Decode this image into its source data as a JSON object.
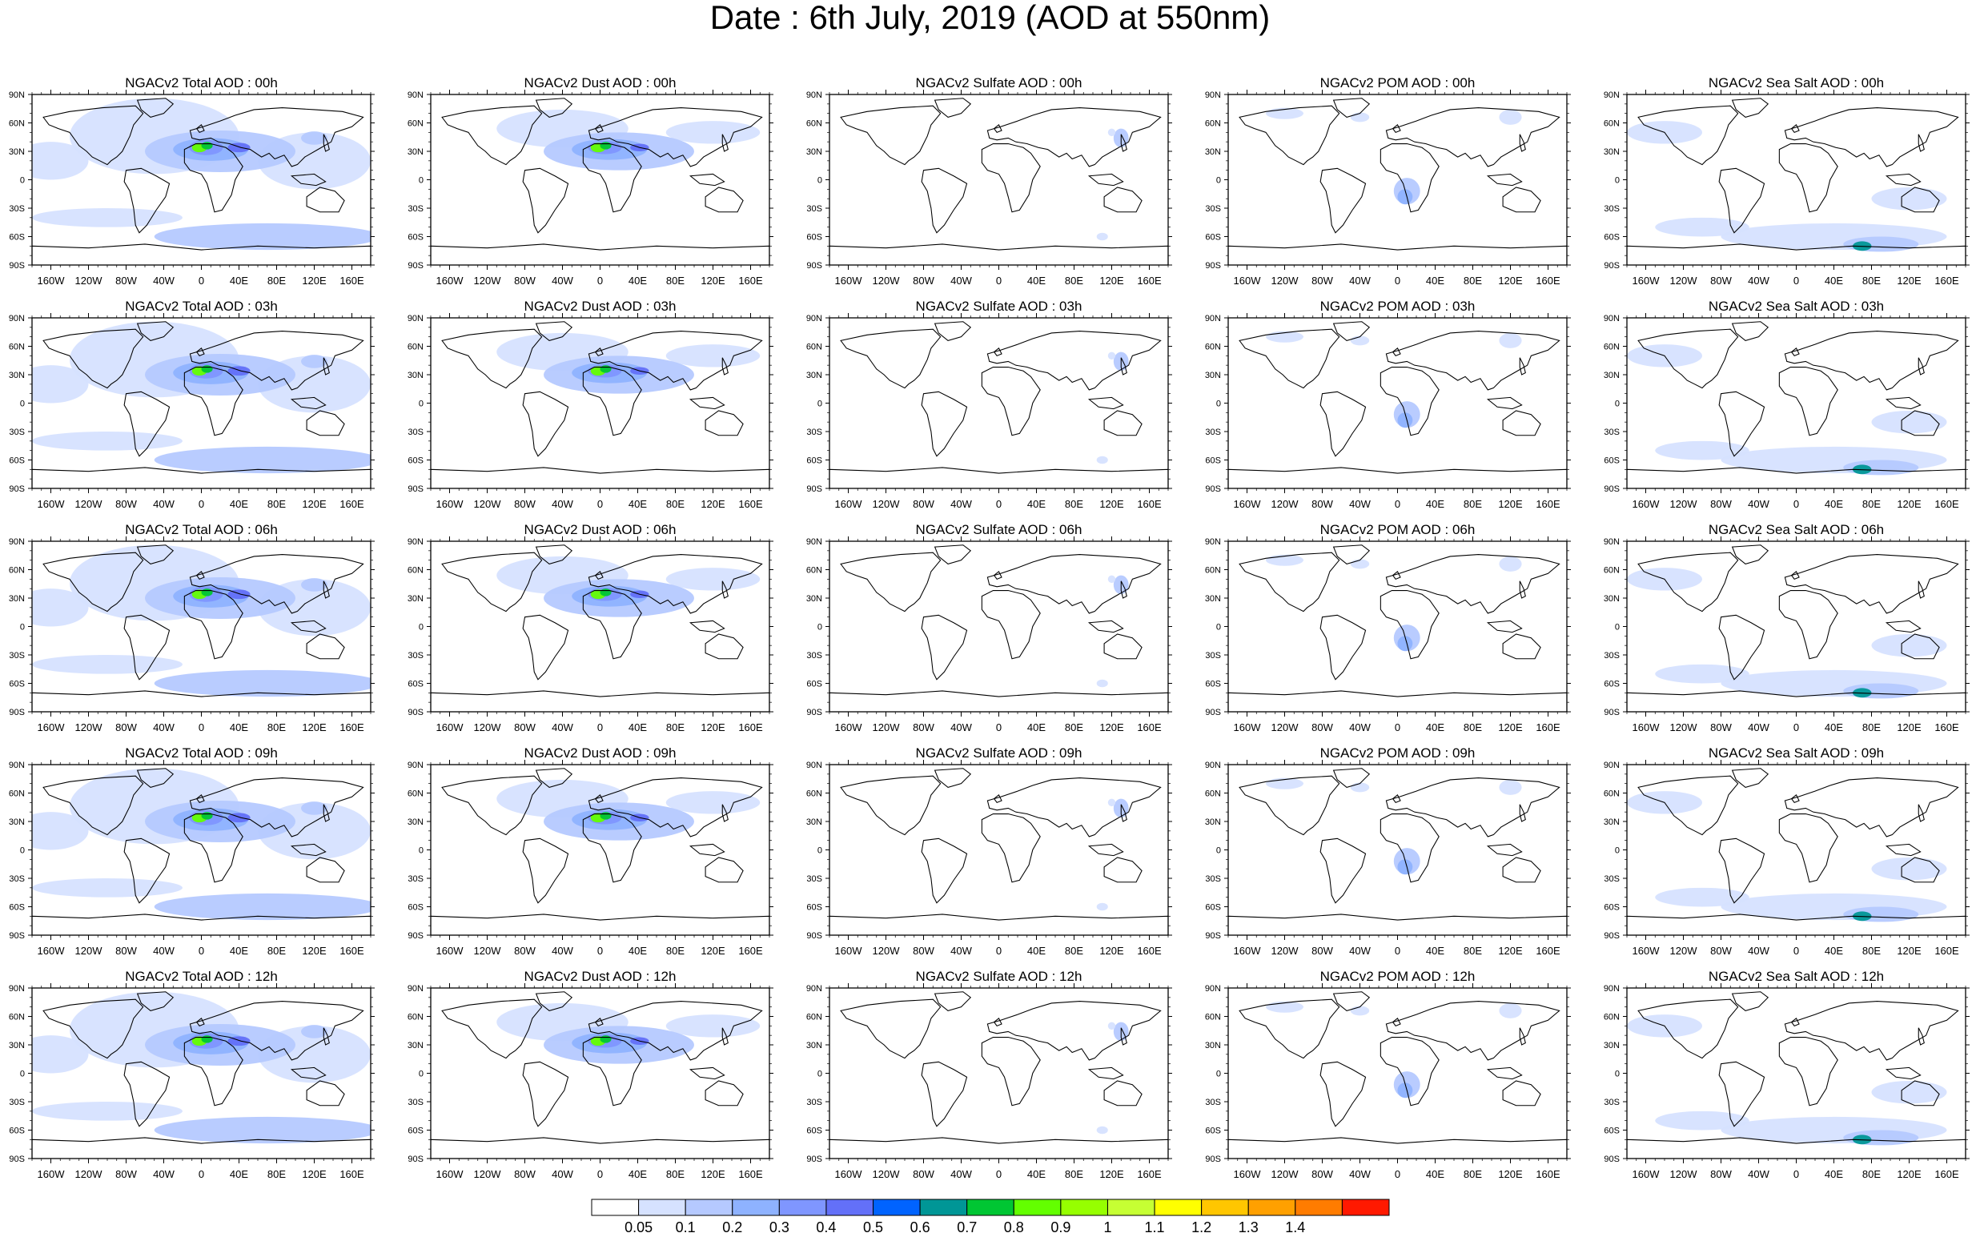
{
  "title": "Date : 6th July, 2019 (AOD at 550nm)",
  "lat_labels": [
    "90N",
    "60N",
    "30N",
    "0",
    "30S",
    "60S",
    "90S"
  ],
  "lon_labels": [
    "160W",
    "120W",
    "80W",
    "40W",
    "0",
    "40E",
    "80E",
    "120E",
    "160E"
  ],
  "panels": [
    [
      "NGACv2 Total AOD : 00h",
      "NGACv2 Dust AOD : 00h",
      "NGACv2 Sulfate AOD : 00h",
      "NGACv2 POM AOD : 00h",
      "NGACv2 Sea Salt AOD : 00h"
    ],
    [
      "NGACv2 Total AOD : 03h",
      "NGACv2 Dust AOD : 03h",
      "NGACv2 Sulfate AOD : 03h",
      "NGACv2 POM AOD : 03h",
      "NGACv2 Sea Salt AOD : 03h"
    ],
    [
      "NGACv2 Total AOD : 06h",
      "NGACv2 Dust AOD : 06h",
      "NGACv2 Sulfate AOD : 06h",
      "NGACv2 POM AOD : 06h",
      "NGACv2 Sea Salt AOD : 06h"
    ],
    [
      "NGACv2 Total AOD : 09h",
      "NGACv2 Dust AOD : 09h",
      "NGACv2 Sulfate AOD : 09h",
      "NGACv2 POM AOD : 09h",
      "NGACv2 Sea Salt  AOD : 09h"
    ],
    [
      "NGACv2 Total AOD : 12h",
      "NGACv2 Dust AOD : 12h",
      "NGACv2 Sulfate AOD : 12h",
      "NGACv2 POM  AOD : 12h",
      "NGACv2 Sea Salt AOD : 12h"
    ]
  ],
  "colorbar": {
    "labels": [
      "0.05",
      "0.1",
      "0.2",
      "0.3",
      "0.4",
      "0.5",
      "0.6",
      "0.7",
      "0.8",
      "0.9",
      "1",
      "1.1",
      "1.2",
      "1.3",
      "1.4"
    ],
    "colors": [
      "#ffffff",
      "#d6e2ff",
      "#b5c9ff",
      "#8eb2ff",
      "#7f96ff",
      "#6370f8",
      "#0063ff",
      "#009696",
      "#00c633",
      "#63ff00",
      "#96ff00",
      "#c6ff33",
      "#ffff00",
      "#ffc600",
      "#ffa000",
      "#ff7c00",
      "#ff1900"
    ]
  }
}
